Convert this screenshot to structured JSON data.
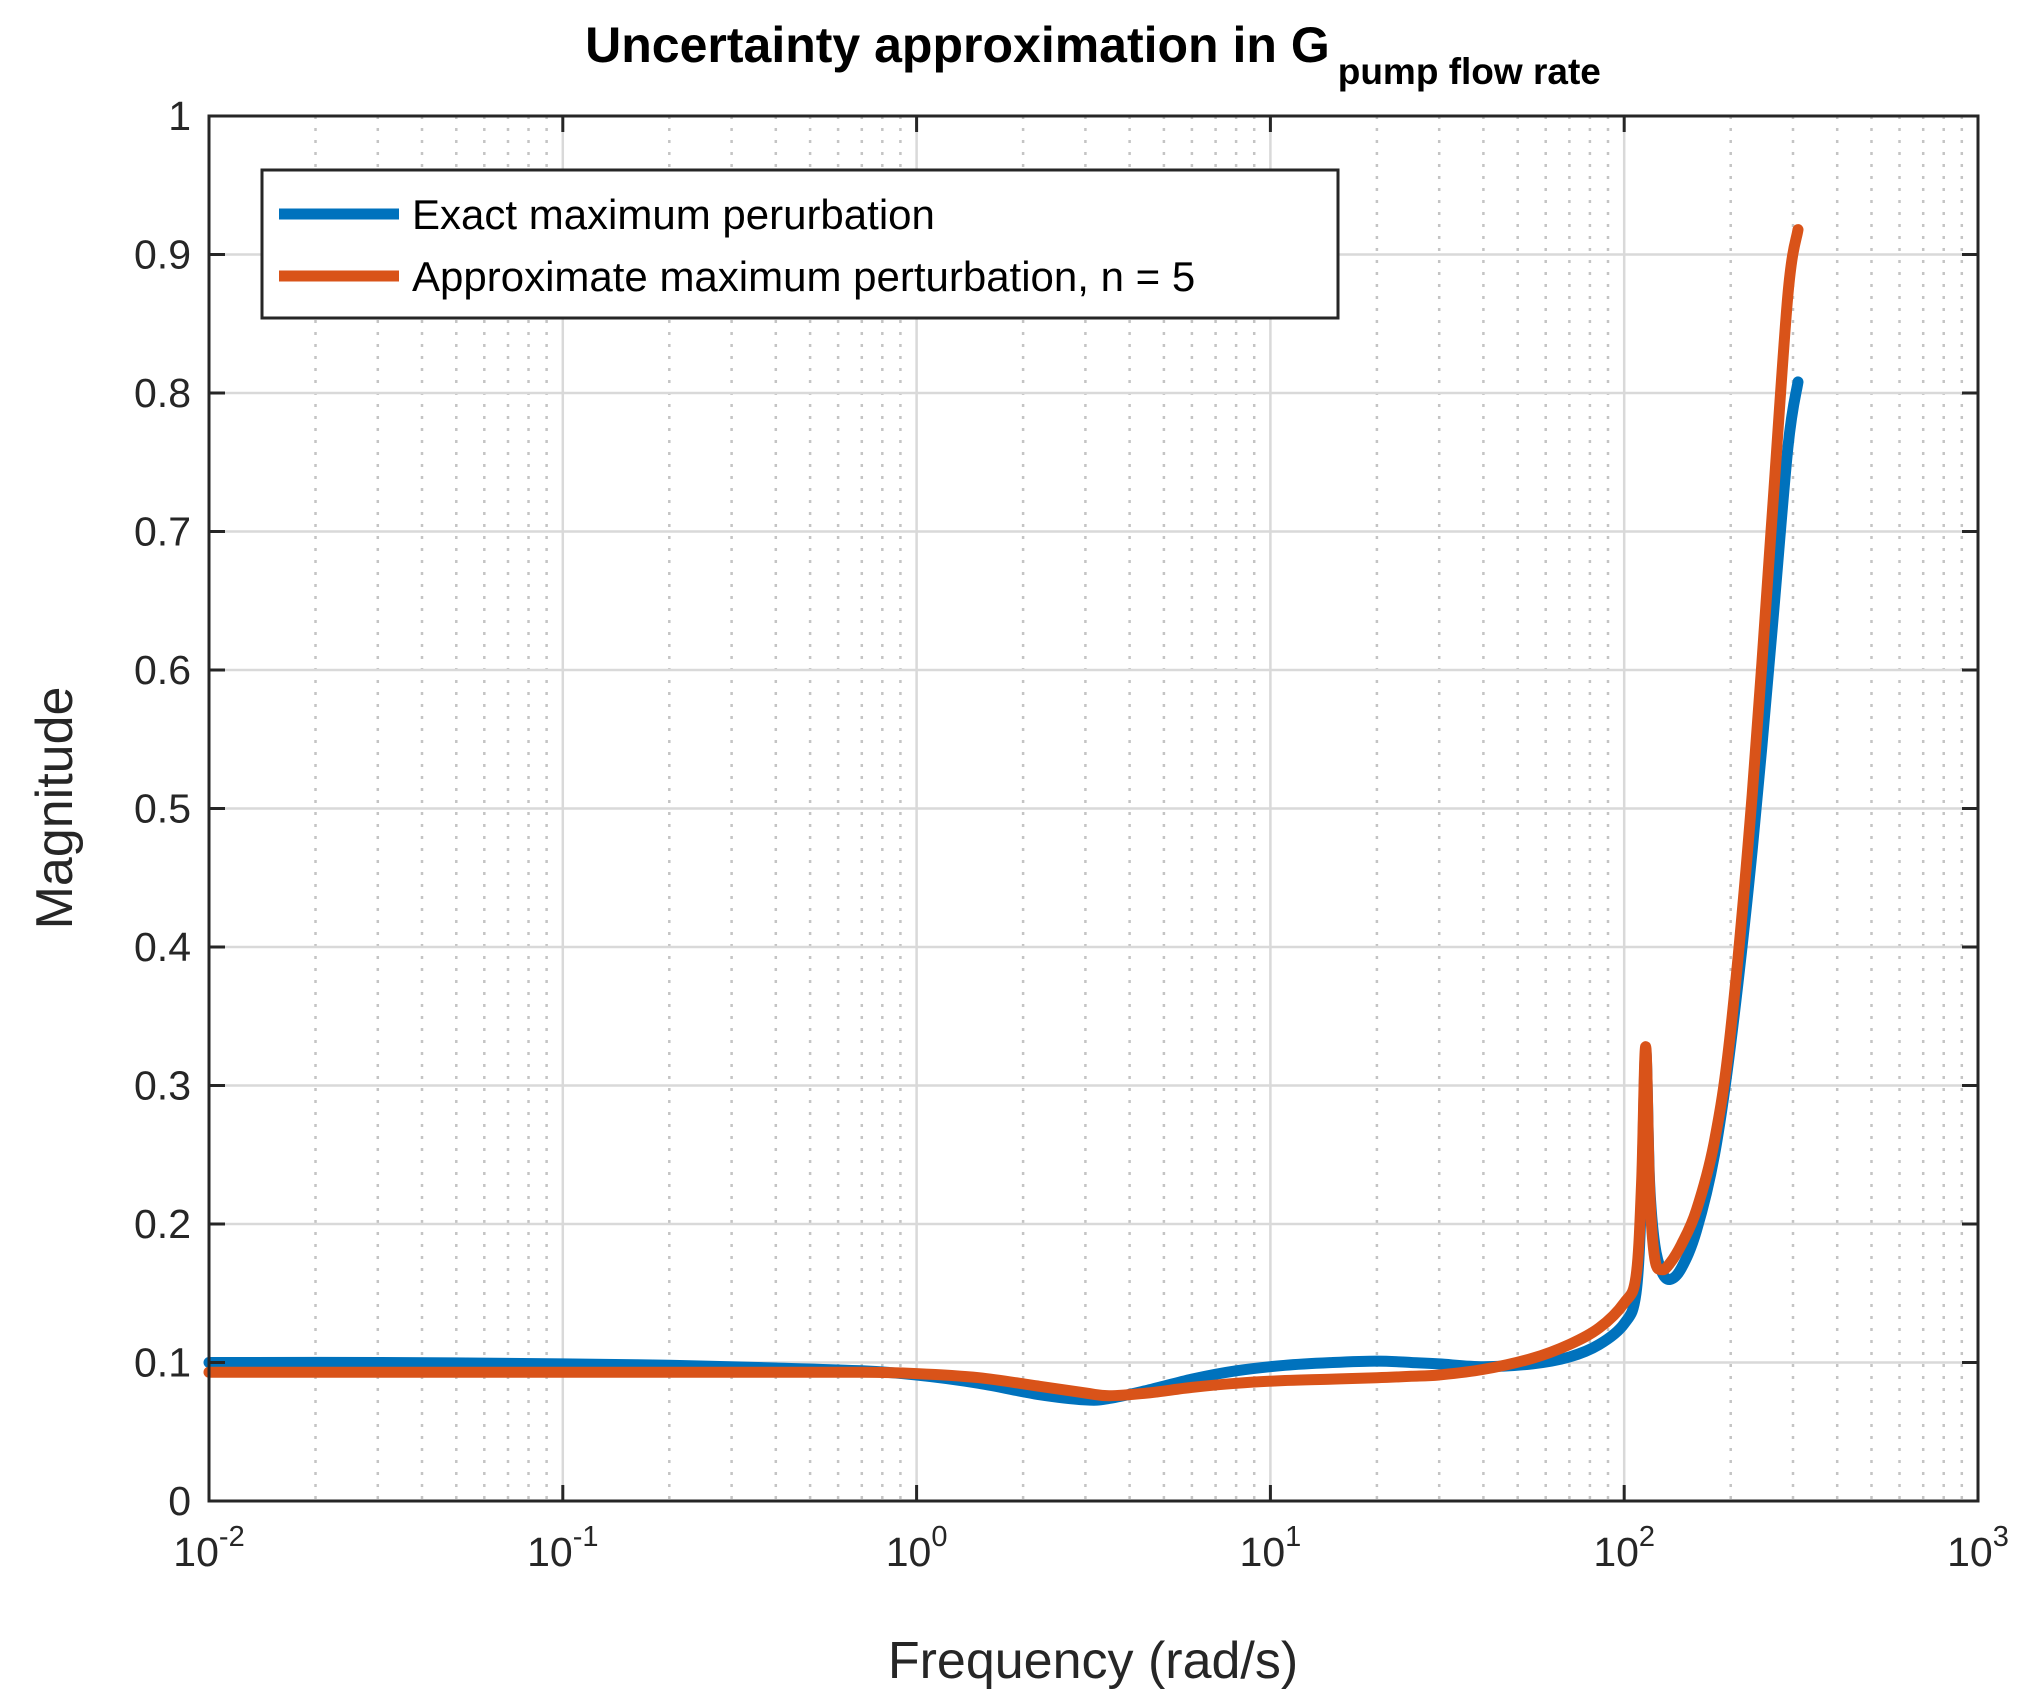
{
  "chart_data": {
    "type": "line",
    "title": "Uncertainty approximation in G",
    "title_subscript": "pump flow rate",
    "xlabel": "Frequency (rad/s)",
    "ylabel": "Magnitude",
    "xscale": "log",
    "xlim": [
      0.01,
      1000
    ],
    "ylim": [
      0,
      1
    ],
    "grid": true,
    "x_ticks": [
      {
        "base": "10",
        "exp": "-2"
      },
      {
        "base": "10",
        "exp": "-1"
      },
      {
        "base": "10",
        "exp": "0"
      },
      {
        "base": "10",
        "exp": "1"
      },
      {
        "base": "10",
        "exp": "2"
      },
      {
        "base": "10",
        "exp": "3"
      }
    ],
    "y_ticks": [
      "0",
      "0.1",
      "0.2",
      "0.3",
      "0.4",
      "0.5",
      "0.6",
      "0.7",
      "0.8",
      "0.9",
      "1"
    ],
    "legend_position": "top-left",
    "series": [
      {
        "name": "Exact maximum perurbation",
        "color": "#0072BD",
        "x": [
          0.01,
          0.03,
          0.1,
          0.2,
          0.4,
          0.7,
          1.0,
          1.5,
          2.2,
          3.0,
          3.5,
          4.5,
          6,
          8,
          11,
          15,
          20,
          25,
          30,
          40,
          55,
          70,
          85,
          100,
          108,
          112,
          115,
          118,
          122,
          128,
          135,
          145,
          160,
          180,
          200,
          230,
          260,
          290,
          310
        ],
        "y": [
          0.1,
          0.1,
          0.099,
          0.098,
          0.096,
          0.094,
          0.091,
          0.085,
          0.077,
          0.073,
          0.074,
          0.08,
          0.088,
          0.094,
          0.098,
          0.1,
          0.101,
          0.1,
          0.099,
          0.097,
          0.099,
          0.104,
          0.113,
          0.128,
          0.15,
          0.22,
          0.325,
          0.23,
          0.185,
          0.165,
          0.16,
          0.168,
          0.195,
          0.25,
          0.33,
          0.47,
          0.62,
          0.76,
          0.808
        ]
      },
      {
        "name": "Approximate maximum perturbation, n = 5",
        "color": "#D95319",
        "x": [
          0.01,
          0.03,
          0.1,
          0.2,
          0.4,
          0.7,
          1.0,
          1.5,
          2.2,
          3.0,
          3.5,
          4.5,
          6,
          8,
          11,
          15,
          20,
          25,
          30,
          40,
          55,
          70,
          85,
          100,
          108,
          112,
          115,
          118,
          122,
          128,
          135,
          145,
          160,
          180,
          200,
          230,
          260,
          290,
          310
        ],
        "y": [
          0.093,
          0.093,
          0.093,
          0.093,
          0.093,
          0.093,
          0.092,
          0.089,
          0.083,
          0.078,
          0.076,
          0.078,
          0.082,
          0.085,
          0.087,
          0.088,
          0.089,
          0.09,
          0.091,
          0.095,
          0.103,
          0.113,
          0.125,
          0.143,
          0.162,
          0.23,
          0.328,
          0.225,
          0.175,
          0.167,
          0.172,
          0.185,
          0.21,
          0.26,
          0.34,
          0.51,
          0.7,
          0.87,
          0.918
        ]
      }
    ]
  }
}
